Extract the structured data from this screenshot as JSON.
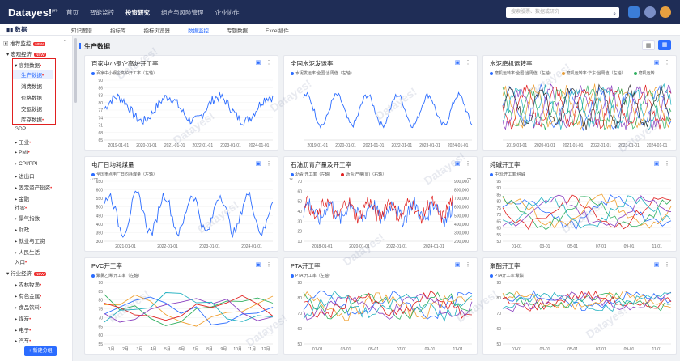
{
  "topbar": {
    "logo": "Datayes!",
    "logo_sup": "pro",
    "nav": [
      "首页",
      "智能监控",
      "投资研究",
      "组合与风险管理",
      "企业协作"
    ],
    "active_nav": 2,
    "search_placeholder": "搜索股票、数据或研究"
  },
  "subbar": {
    "brand": "数据",
    "tabs": [
      "知识图谱",
      "指标库",
      "指标浏览器",
      "数据监控",
      "专题数据",
      "Excel插件"
    ],
    "active_tab": 3
  },
  "sidebar": {
    "root": "推荐监控",
    "root_badge": "NEW",
    "macro": "宏观经济",
    "macro_badge": "NEW",
    "high_freq": "高频数据",
    "high_freq_children": [
      "生产数据",
      "消费数据",
      "价格数据",
      "交运数据",
      "库存数据"
    ],
    "gdp": "GDP",
    "items": [
      "工业",
      "PMI",
      "CPI/PPI",
      "进出口",
      "固定资产投资",
      "金融",
      "景气指数",
      "财政",
      "就业与工资",
      "人民生活"
    ],
    "social": "社零",
    "import": "入口",
    "industry": "行业经济",
    "industry_badge": "NEW",
    "industry_items": [
      "农林牧渔",
      "有色金属",
      "食品饮料",
      "煤炭",
      "电子",
      "汽车"
    ],
    "new_group_btn": "+ 新建分组"
  },
  "main": {
    "section_title": "生产数据"
  },
  "cards": [
    {
      "title": "百家中小钢企高炉开工率",
      "legend": [
        "百家中小钢企高炉开工率（左轴）"
      ]
    },
    {
      "title": "全国水泥发运率",
      "legend": [
        "水泥发运率:全国:当周值（左轴）"
      ]
    },
    {
      "title": "水泥磨机运转率",
      "legend": [
        "磨机运转率:全国:当周值（左轴）",
        "磨机运转率:华东:当周值（左轴）",
        "磨机运转"
      ]
    },
    {
      "title": "电厂日均耗煤量",
      "legend": [
        "全国重点电厂日均耗煤量（左轴）"
      ]
    },
    {
      "title": "石油沥青产量及开工率",
      "legend": [
        "沥青:开工率（左轴）",
        "沥青:产量(周)（右轴）"
      ]
    },
    {
      "title": "纯碱开工率",
      "legend": [
        "中国:开工率:纯碱"
      ]
    },
    {
      "title": "PVC开工率",
      "legend": [
        "聚氯乙烯:开工率（左轴）"
      ]
    },
    {
      "title": "PTA开工率",
      "legend": [
        "PTA:开工率（左轴）"
      ]
    },
    {
      "title": "聚酯开工率",
      "legend": [
        "PTA开工率:聚酯"
      ]
    }
  ],
  "chart_data": [
    {
      "type": "line",
      "title": "百家中小钢企高炉开工率",
      "x": [
        "2019-01-01",
        "2020-01-01",
        "2021-01-01",
        "2022-01-01",
        "2023-01-01",
        "2024-01-01"
      ],
      "ylim": [
        65,
        90
      ],
      "yticks": [
        65,
        68,
        71,
        74,
        77,
        80,
        83,
        86,
        90
      ]
    },
    {
      "type": "line",
      "title": "全国水泥发运率",
      "x": [
        "2019-01-01",
        "2020-01-01",
        "2021-01-01",
        "2022-01-01",
        "2023-01-01",
        "2024-01-01"
      ]
    },
    {
      "type": "line",
      "title": "水泥磨机运转率",
      "x": [
        "2019-01-01",
        "2020-01-01",
        "2021-01-01",
        "2022-01-01",
        "2023-01-01",
        "2024-01-01"
      ]
    },
    {
      "type": "line",
      "title": "电厂日均耗煤量",
      "x": [
        "2021-01-01",
        "2022-01-01",
        "2023-01-01",
        "2024-01-01"
      ],
      "ylabel": "万吨",
      "ylim": [
        300,
        650
      ],
      "yticks": [
        300,
        350,
        400,
        450,
        500,
        550,
        600,
        650
      ]
    },
    {
      "type": "line",
      "title": "石油沥青产量及开工率",
      "x": [
        "2018-01-01",
        "2020-01-01",
        "2022-01-01",
        "2024-01-01"
      ],
      "ylim": [
        10,
        70
      ],
      "yticks": [
        10,
        20,
        30,
        40,
        50,
        60,
        70
      ],
      "ylim_right": [
        200000,
        900000
      ],
      "yticks_right": [
        200000,
        300000,
        400000,
        500000,
        600000,
        700000,
        800000,
        900000
      ],
      "ylabel_right": "吨",
      "ylabel": "%"
    },
    {
      "type": "line",
      "title": "纯碱开工率",
      "x": [
        "01-01",
        "03-01",
        "05-01",
        "07-01",
        "09-01",
        "11-01"
      ],
      "ylim": [
        50,
        95
      ],
      "yticks": [
        50,
        55,
        60,
        65,
        70,
        75,
        80,
        85,
        90,
        95
      ]
    },
    {
      "type": "line",
      "title": "PVC开工率",
      "x": [
        "1月",
        "2月",
        "3月",
        "4月",
        "5月",
        "6月",
        "7月",
        "8月",
        "9月",
        "10月",
        "11月",
        "12月"
      ],
      "ylim": [
        55,
        90
      ],
      "yticks": [
        55,
        60,
        65,
        70,
        75,
        80,
        85,
        90
      ]
    },
    {
      "type": "line",
      "title": "PTA开工率",
      "x": [
        "01-01",
        "03-01",
        "05-01",
        "07-01",
        "09-01",
        "11-01"
      ],
      "ylim": [
        50,
        90
      ],
      "yticks": [
        50,
        60,
        70,
        80,
        90
      ]
    },
    {
      "type": "line",
      "title": "聚酯开工率",
      "x": [
        "01-01",
        "03-01",
        "05-01",
        "07-01",
        "09-01",
        "11-01"
      ],
      "ylim": [
        50,
        90
      ],
      "yticks": [
        50,
        60,
        70,
        80,
        90
      ]
    }
  ],
  "watermark": "Datayes!",
  "colors": {
    "accent": "#2b6cff",
    "topbar": "#1f2d56"
  }
}
